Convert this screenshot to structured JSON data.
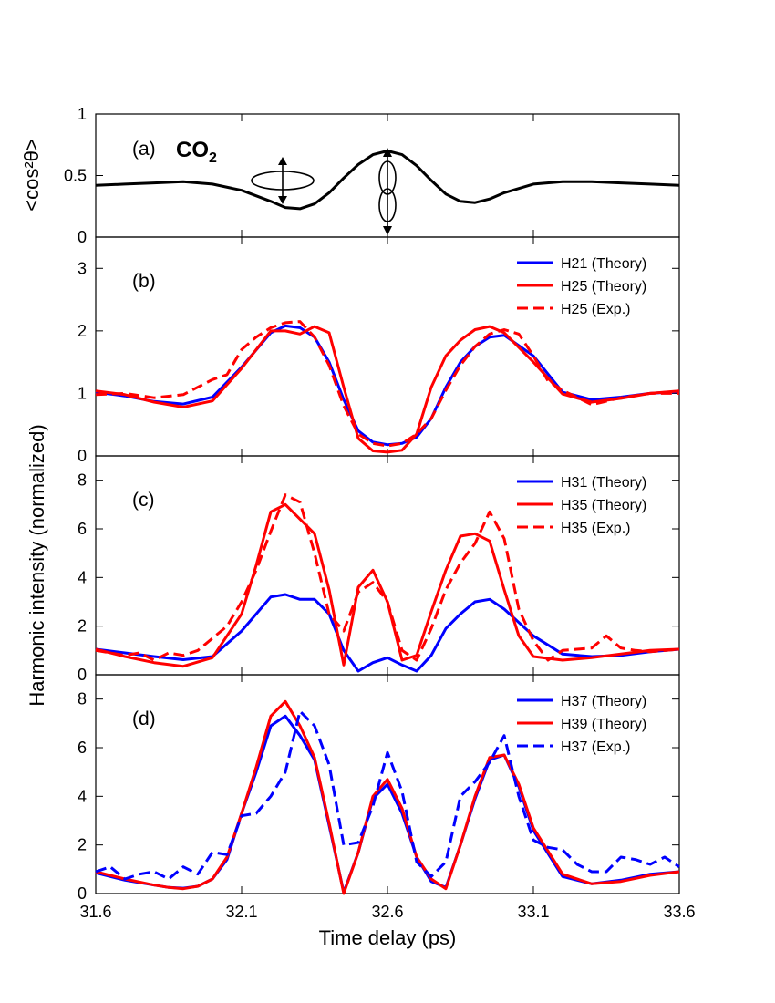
{
  "figure": {
    "xlabel": "Time delay (ps)",
    "ylabel_top": "<cos²θ>",
    "ylabel_main": "Harmonic intensity (normalized)",
    "xticks": [
      "31.6",
      "32.1",
      "32.6",
      "33.1",
      "33.6"
    ]
  },
  "colors": {
    "black": "#000000",
    "blue": "#0000ff",
    "red": "#ff0000"
  },
  "chart_data": [
    {
      "type": "line",
      "panel": "(a)",
      "molecule_label": "CO",
      "molecule_subscript": "2",
      "xlim": [
        31.6,
        33.6
      ],
      "ylim": [
        0,
        1
      ],
      "yticks": [
        "0",
        "0.5",
        "1"
      ],
      "series": [
        {
          "color": "black",
          "dash": false,
          "x": [
            31.6,
            31.7,
            31.8,
            31.9,
            32.0,
            32.1,
            32.2,
            32.25,
            32.3,
            32.35,
            32.4,
            32.45,
            32.5,
            32.55,
            32.6,
            32.65,
            32.7,
            32.75,
            32.8,
            32.85,
            32.9,
            32.95,
            33.0,
            33.1,
            33.2,
            33.3,
            33.4,
            33.5,
            33.6
          ],
          "y": [
            0.42,
            0.43,
            0.44,
            0.45,
            0.43,
            0.38,
            0.29,
            0.24,
            0.23,
            0.27,
            0.36,
            0.48,
            0.59,
            0.67,
            0.7,
            0.67,
            0.58,
            0.46,
            0.35,
            0.29,
            0.28,
            0.31,
            0.36,
            0.43,
            0.45,
            0.45,
            0.44,
            0.43,
            0.42
          ]
        }
      ]
    },
    {
      "type": "line",
      "panel": "(b)",
      "xlim": [
        31.6,
        33.6
      ],
      "ylim": [
        0,
        3.5
      ],
      "yticks": [
        "0",
        "1",
        "2",
        "3"
      ],
      "series": [
        {
          "name": "H21 (Theory)",
          "color": "blue",
          "dash": false,
          "x": [
            31.6,
            31.7,
            31.8,
            31.9,
            32.0,
            32.1,
            32.2,
            32.25,
            32.3,
            32.35,
            32.4,
            32.45,
            32.5,
            32.55,
            32.6,
            32.65,
            32.7,
            32.75,
            32.8,
            32.85,
            32.9,
            32.95,
            33.0,
            33.1,
            33.2,
            33.3,
            33.4,
            33.5,
            33.6
          ],
          "y": [
            1.02,
            0.96,
            0.87,
            0.83,
            0.94,
            1.42,
            1.97,
            2.08,
            2.05,
            1.9,
            1.5,
            0.9,
            0.4,
            0.22,
            0.18,
            0.2,
            0.3,
            0.6,
            1.1,
            1.5,
            1.75,
            1.9,
            1.93,
            1.6,
            1.02,
            0.9,
            0.94,
            1.0,
            1.03
          ]
        },
        {
          "name": "H25 (Theory)",
          "color": "red",
          "dash": false,
          "x": [
            31.6,
            31.7,
            31.8,
            31.9,
            32.0,
            32.1,
            32.2,
            32.25,
            32.3,
            32.35,
            32.4,
            32.45,
            32.5,
            32.55,
            32.6,
            32.65,
            32.7,
            32.75,
            32.8,
            32.85,
            32.9,
            32.95,
            33.0,
            33.1,
            33.2,
            33.3,
            33.4,
            33.5,
            33.6
          ],
          "y": [
            1.04,
            0.98,
            0.86,
            0.78,
            0.88,
            1.4,
            2.0,
            2.0,
            1.95,
            2.07,
            1.97,
            1.1,
            0.28,
            0.08,
            0.06,
            0.09,
            0.35,
            1.1,
            1.6,
            1.85,
            2.02,
            2.07,
            1.97,
            1.5,
            0.99,
            0.86,
            0.92,
            1.0,
            1.04
          ]
        },
        {
          "name": "H25 (Exp.)",
          "color": "red",
          "dash": true,
          "x": [
            31.6,
            31.7,
            31.8,
            31.9,
            32.0,
            32.05,
            32.1,
            32.15,
            32.2,
            32.25,
            32.3,
            32.35,
            32.4,
            32.45,
            32.5,
            32.55,
            32.6,
            32.65,
            32.7,
            32.75,
            32.8,
            32.85,
            32.9,
            32.95,
            33.0,
            33.05,
            33.1,
            33.15,
            33.2,
            33.3,
            33.4,
            33.5,
            33.6
          ],
          "y": [
            0.98,
            1.0,
            0.93,
            0.98,
            1.22,
            1.3,
            1.7,
            1.9,
            2.05,
            2.13,
            2.15,
            1.9,
            1.45,
            0.8,
            0.35,
            0.2,
            0.16,
            0.2,
            0.35,
            0.6,
            1.05,
            1.45,
            1.75,
            1.95,
            2.02,
            1.95,
            1.6,
            1.2,
            1.05,
            0.82,
            0.93,
            1.0,
            1.0
          ]
        }
      ]
    },
    {
      "type": "line",
      "panel": "(c)",
      "xlim": [
        31.6,
        33.6
      ],
      "ylim": [
        0,
        9
      ],
      "yticks": [
        "0",
        "2",
        "4",
        "6",
        "8"
      ],
      "series": [
        {
          "name": "H31 (Theory)",
          "color": "blue",
          "dash": false,
          "x": [
            31.6,
            31.7,
            31.8,
            31.9,
            32.0,
            32.1,
            32.2,
            32.25,
            32.3,
            32.35,
            32.4,
            32.45,
            32.5,
            32.55,
            32.6,
            32.65,
            32.7,
            32.75,
            32.8,
            32.85,
            32.9,
            32.95,
            33.0,
            33.1,
            33.2,
            33.3,
            33.4,
            33.5,
            33.6
          ],
          "y": [
            1.05,
            0.9,
            0.75,
            0.62,
            0.75,
            1.8,
            3.2,
            3.3,
            3.1,
            3.1,
            2.5,
            1.0,
            0.15,
            0.5,
            0.7,
            0.4,
            0.15,
            0.8,
            1.9,
            2.5,
            3.0,
            3.1,
            2.7,
            1.6,
            0.85,
            0.75,
            0.8,
            0.95,
            1.05
          ]
        },
        {
          "name": "H35 (Theory)",
          "color": "red",
          "dash": false,
          "x": [
            31.6,
            31.7,
            31.8,
            31.9,
            32.0,
            32.1,
            32.15,
            32.2,
            32.25,
            32.3,
            32.35,
            32.4,
            32.45,
            32.5,
            32.55,
            32.6,
            32.65,
            32.7,
            32.75,
            32.8,
            32.85,
            32.9,
            32.95,
            33.0,
            33.05,
            33.1,
            33.2,
            33.3,
            33.4,
            33.5,
            33.6
          ],
          "y": [
            1.05,
            0.75,
            0.5,
            0.35,
            0.7,
            2.5,
            4.5,
            6.7,
            7.0,
            6.4,
            5.8,
            3.5,
            0.4,
            3.6,
            4.3,
            3.0,
            0.6,
            0.8,
            2.6,
            4.3,
            5.7,
            5.8,
            5.5,
            3.5,
            1.6,
            0.75,
            0.6,
            0.7,
            0.85,
            1.0,
            1.05
          ]
        },
        {
          "name": "H35 (Exp.)",
          "color": "red",
          "dash": true,
          "x": [
            31.6,
            31.7,
            31.75,
            31.8,
            31.85,
            31.9,
            31.95,
            32.0,
            32.05,
            32.1,
            32.15,
            32.2,
            32.25,
            32.3,
            32.35,
            32.4,
            32.45,
            32.5,
            32.55,
            32.6,
            32.65,
            32.7,
            32.75,
            32.8,
            32.85,
            32.9,
            32.95,
            33.0,
            33.05,
            33.1,
            33.15,
            33.2,
            33.3,
            33.35,
            33.4,
            33.45,
            33.5,
            33.6
          ],
          "y": [
            1.0,
            0.8,
            0.9,
            0.6,
            0.9,
            0.8,
            1.0,
            1.5,
            2.0,
            3.0,
            4.3,
            5.9,
            7.4,
            7.1,
            5.0,
            2.5,
            1.8,
            3.4,
            3.8,
            3.0,
            1.0,
            0.6,
            1.9,
            3.5,
            4.6,
            5.4,
            6.7,
            5.6,
            2.7,
            1.4,
            0.6,
            1.0,
            1.1,
            1.6,
            1.1,
            1.0,
            0.95,
            1.05
          ]
        }
      ]
    },
    {
      "type": "line",
      "panel": "(d)",
      "xlim": [
        31.6,
        33.6
      ],
      "ylim": [
        0,
        9
      ],
      "yticks": [
        "0",
        "2",
        "4",
        "6",
        "8"
      ],
      "series": [
        {
          "name": "H37 (Theory)",
          "color": "blue",
          "dash": false,
          "x": [
            31.6,
            31.7,
            31.8,
            31.85,
            31.9,
            31.95,
            32.0,
            32.05,
            32.1,
            32.15,
            32.2,
            32.25,
            32.3,
            32.35,
            32.4,
            32.45,
            32.5,
            32.55,
            32.6,
            32.65,
            32.7,
            32.75,
            32.8,
            32.85,
            32.9,
            32.95,
            33.0,
            33.05,
            33.1,
            33.2,
            33.3,
            33.4,
            33.5,
            33.6
          ],
          "y": [
            0.85,
            0.55,
            0.35,
            0.25,
            0.22,
            0.3,
            0.6,
            1.4,
            3.3,
            5.0,
            6.9,
            7.3,
            6.5,
            5.5,
            2.8,
            0.05,
            1.7,
            3.9,
            4.5,
            3.3,
            1.5,
            0.5,
            0.25,
            2.0,
            3.9,
            5.5,
            5.7,
            4.4,
            2.6,
            0.7,
            0.4,
            0.55,
            0.8,
            0.9
          ]
        },
        {
          "name": "H39 (Theory)",
          "color": "red",
          "dash": false,
          "x": [
            31.6,
            31.7,
            31.8,
            31.85,
            31.9,
            31.95,
            32.0,
            32.05,
            32.1,
            32.15,
            32.2,
            32.25,
            32.3,
            32.35,
            32.4,
            32.45,
            32.5,
            32.55,
            32.6,
            32.65,
            32.7,
            32.75,
            32.8,
            32.85,
            32.9,
            32.95,
            33.0,
            33.05,
            33.1,
            33.2,
            33.3,
            33.4,
            33.5,
            33.6
          ],
          "y": [
            0.9,
            0.6,
            0.35,
            0.25,
            0.2,
            0.3,
            0.6,
            1.5,
            3.3,
            5.2,
            7.3,
            7.9,
            6.9,
            5.6,
            2.9,
            0.0,
            1.7,
            4.0,
            4.7,
            3.5,
            1.5,
            0.6,
            0.2,
            2.0,
            4.0,
            5.6,
            5.7,
            4.5,
            2.7,
            0.8,
            0.4,
            0.5,
            0.75,
            0.9
          ]
        },
        {
          "name": "H37 (Exp.)",
          "color": "blue",
          "dash": true,
          "x": [
            31.6,
            31.65,
            31.7,
            31.75,
            31.8,
            31.85,
            31.9,
            31.95,
            32.0,
            32.05,
            32.1,
            32.15,
            32.2,
            32.25,
            32.3,
            32.35,
            32.4,
            32.45,
            32.5,
            32.55,
            32.6,
            32.65,
            32.7,
            32.75,
            32.8,
            32.85,
            32.9,
            32.95,
            33.0,
            33.05,
            33.1,
            33.15,
            33.2,
            33.25,
            33.3,
            33.35,
            33.4,
            33.45,
            33.5,
            33.55,
            33.6
          ],
          "y": [
            0.9,
            1.1,
            0.6,
            0.8,
            0.9,
            0.6,
            1.1,
            0.8,
            1.7,
            1.6,
            3.2,
            3.3,
            4.0,
            5.0,
            7.5,
            6.9,
            5.3,
            2.0,
            2.1,
            3.6,
            5.8,
            4.2,
            1.3,
            0.7,
            1.3,
            4.0,
            4.6,
            5.4,
            6.5,
            4.0,
            2.2,
            1.9,
            1.8,
            1.2,
            0.9,
            0.9,
            1.5,
            1.4,
            1.2,
            1.5,
            1.1
          ]
        }
      ]
    }
  ]
}
